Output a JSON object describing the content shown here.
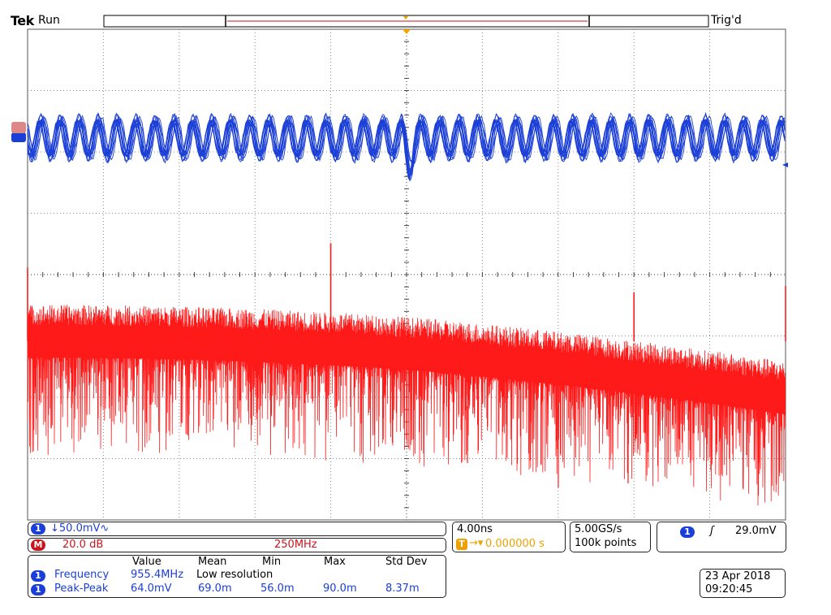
{
  "header": {
    "brand": "Tek",
    "acq_state": "Run",
    "trigger_state": "Trig'd"
  },
  "colors": {
    "ch1": "#1b3fd6",
    "math": "#ff1a1a",
    "graticule": "#888888",
    "trigger_marker": "#f0a000"
  },
  "chart_data": [
    {
      "type": "line",
      "name": "ch1",
      "title": "",
      "description_values": {
        "approx_period_ns": 1.05,
        "approx_peak_to_peak_mV": 64.0,
        "min_divisions_offset": -0.45,
        "max_divisions_offset": 0.45
      },
      "x_divisions": 10,
      "y_divisions": 8,
      "grid": true
    },
    {
      "type": "line",
      "name": "math-fft",
      "title": "",
      "description_values": {
        "noise_floor_div_left": -0.9,
        "noise_floor_div_right": -1.5,
        "spikes": [
          {
            "x_div": 4.0,
            "height_div": 1.6
          },
          {
            "x_div": 8.0,
            "height_div": 0.8
          },
          {
            "x_div": 0.0,
            "height_div": 1.2
          },
          {
            "x_div": 10.0,
            "height_div": 0.9
          }
        ]
      },
      "grid": true
    }
  ],
  "channel1": {
    "badge": "1",
    "scale": "↓50.0mV∿"
  },
  "math": {
    "badge": "M",
    "scale": "20.0 dB",
    "freq": "250MHz"
  },
  "timebase": {
    "scale": "4.00ns",
    "position": "0.000000 s",
    "trig_badge": "T",
    "sample_rate": "5.00GS/s",
    "record_length": "100k points"
  },
  "trigger": {
    "badge": "1",
    "slope": "ʃ",
    "level": "29.0mV"
  },
  "measurements": {
    "headers": [
      "Value",
      "Mean",
      "Min",
      "Max",
      "Std Dev"
    ],
    "rows": [
      {
        "badge": "1",
        "name": "Frequency",
        "value": "955.4MHz",
        "mean": "Low resolution",
        "min": "",
        "max": "",
        "std": ""
      },
      {
        "badge": "1",
        "name": "Peak-Peak",
        "value": "64.0mV",
        "mean": "69.0m",
        "min": "56.0m",
        "max": "90.0m",
        "std": "8.37m"
      }
    ]
  },
  "datetime": {
    "date": "23 Apr 2018",
    "time": "09:20:45"
  }
}
